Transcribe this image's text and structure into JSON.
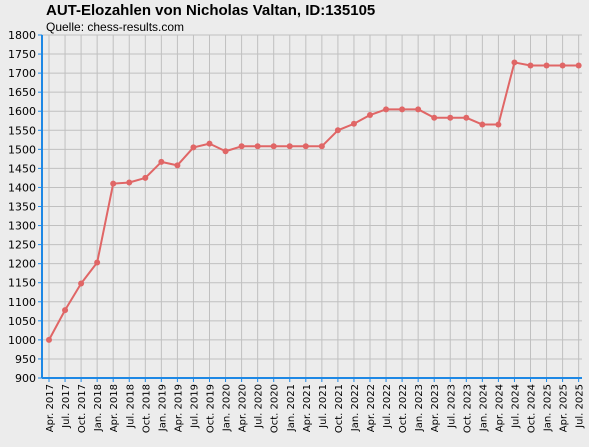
{
  "chart_data": {
    "type": "line",
    "title": "AUT-Elozahlen von Nicholas Valtan, ID:135105",
    "subtitle": "Quelle: chess-results.com",
    "xlabel": "",
    "ylabel": "",
    "ylim": [
      900,
      1800
    ],
    "y_ticks": [
      900,
      950,
      1000,
      1050,
      1100,
      1150,
      1200,
      1250,
      1300,
      1350,
      1400,
      1450,
      1500,
      1550,
      1600,
      1650,
      1700,
      1750,
      1800
    ],
    "grid": true,
    "legend": "none",
    "categories": [
      "Apr. 2017",
      "Jul. 2017",
      "Oct. 2017",
      "Jan. 2018",
      "Apr. 2018",
      "Jul. 2018",
      "Oct. 2018",
      "Jan. 2019",
      "Apr. 2019",
      "Jul. 2019",
      "Oct. 2019",
      "Jan. 2020",
      "Apr. 2020",
      "Jul. 2020",
      "Oct. 2020",
      "Jan. 2021",
      "Apr. 2021",
      "Jul. 2021",
      "Oct. 2021",
      "Jan. 2022",
      "Apr. 2022",
      "Jul. 2022",
      "Oct. 2022",
      "Jan. 2023",
      "Apr. 2023",
      "Jul. 2023",
      "Oct. 2023",
      "Jan. 2024",
      "Apr. 2024",
      "Jul. 2024",
      "Oct. 2024",
      "Jan. 2025",
      "Apr. 2025",
      "Jul. 2025"
    ],
    "series": [
      {
        "values": [
          1000,
          1078,
          1148,
          1203,
          1410,
          1413,
          1425,
          1467,
          1458,
          1505,
          1515,
          1495,
          1508,
          1508,
          1508,
          1508,
          1508,
          1508,
          1550,
          1567,
          1590,
          1605,
          1605,
          1605,
          1583,
          1583,
          1583,
          1565,
          1565,
          1728,
          1720,
          1720,
          1720,
          1720
        ],
        "color": "#e06666"
      }
    ]
  },
  "colors": {
    "background": "#ececec",
    "grid": "#c0c0c0",
    "axis": "#1e88e5",
    "line": "#e06666"
  }
}
